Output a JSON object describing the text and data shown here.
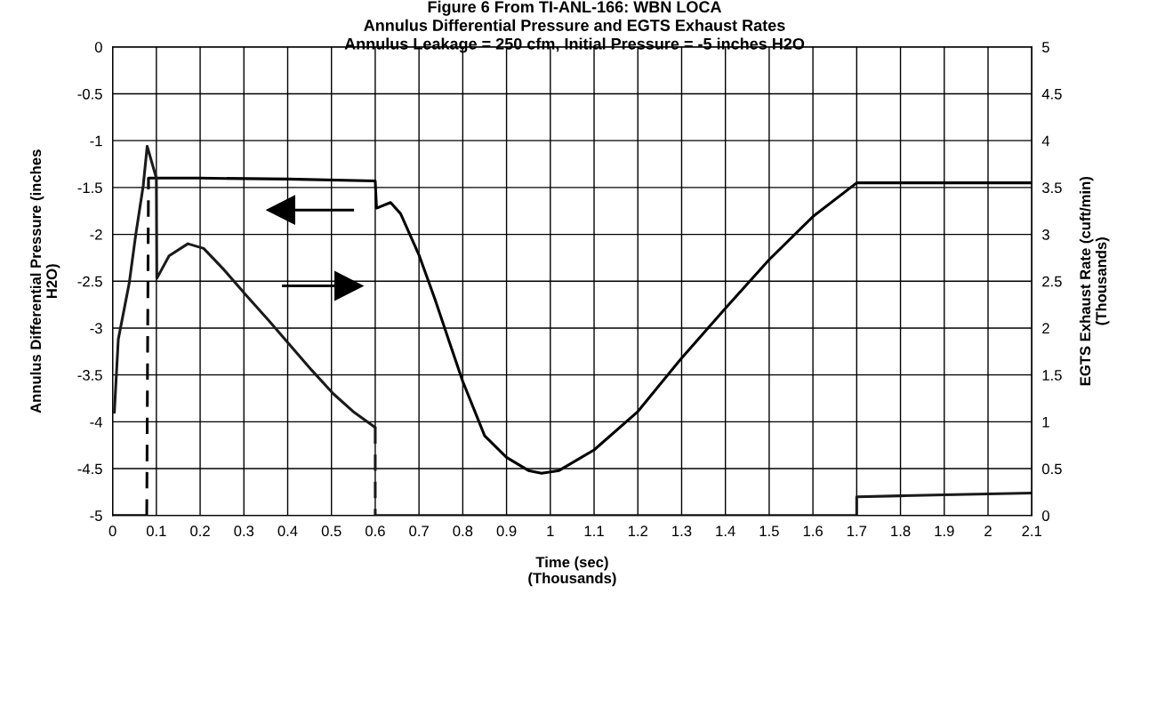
{
  "chart_data": {
    "type": "line",
    "title": "Figure 6 From TI-ANL-166: WBN LOCA\nAnnulus Differential Pressure and EGTS Exhaust Rates\nAnnulus Leakage = 250 cfm, Initial Pressure = -5 inches H2O",
    "xlabel": "Time (sec)\n(Thousands)",
    "ylabel": "Annulus Differential Pressure (inches\nH2O)",
    "y2label": "EGTS Exhaust Rate (cuft/min)\n(Thousands)",
    "series": [
      {
        "color": "#000000",
        "line_style": "solid",
        "x": [
          0,
          0.078
        ],
        "values": [
          -5,
          -5
        ]
      },
      {
        "color": "#000000",
        "line_style": "solid",
        "x": [
          0.082,
          0.2,
          0.4,
          0.6,
          0.603,
          0.635,
          0.658,
          0.7,
          0.737,
          0.773,
          0.8,
          0.85,
          0.9,
          0.95,
          0.98,
          1.02,
          1.1,
          1.2,
          1.3,
          1.4,
          1.5,
          1.6,
          1.7,
          2.1
        ],
        "values": [
          -1.4,
          -1.4,
          -1.41,
          -1.43,
          -1.72,
          -1.66,
          -1.78,
          -2.22,
          -2.7,
          -3.2,
          -3.57,
          -4.15,
          -4.38,
          -4.52,
          -4.55,
          -4.52,
          -4.3,
          -3.89,
          -3.32,
          -2.79,
          -2.27,
          -1.81,
          -1.45,
          -1.45
        ]
      },
      {
        "color": "#000000",
        "line_style": "dashed",
        "x": [
          0.078,
          0.082
        ],
        "values": [
          -5,
          -1.4
        ]
      },
      {
        "color": "#1a1a1a",
        "line_style": "solid",
        "axis": "y2",
        "x": [
          0.004,
          0.013,
          0.038,
          0.053,
          0.07,
          0.079,
          0.1,
          0.101,
          0.129,
          0.172,
          0.208,
          0.255,
          0.305,
          0.355,
          0.405,
          0.455,
          0.504,
          0.552,
          0.6
        ],
        "values": [
          1.1,
          1.88,
          2.48,
          3.0,
          3.52,
          3.94,
          3.6,
          2.53,
          2.77,
          2.9,
          2.85,
          2.62,
          2.35,
          2.09,
          1.82,
          1.55,
          1.3,
          1.1,
          0.94
        ]
      },
      {
        "color": "#1a1a1a",
        "line_style": "dashed",
        "axis": "y2",
        "x": [
          0.6,
          0.6
        ],
        "values": [
          0.94,
          0
        ]
      },
      {
        "color": "#1a1a1a",
        "line_style": "solid",
        "axis": "y2",
        "x": [
          0.6,
          1.7,
          1.7,
          1.8,
          1.9,
          2.0,
          2.1
        ],
        "values": [
          0,
          0,
          0.2,
          0.21,
          0.22,
          0.23,
          0.24
        ]
      }
    ],
    "xlim": [
      0,
      2.1
    ],
    "xticks": [
      0,
      0.1,
      0.2,
      0.3,
      0.4,
      0.5,
      0.6,
      0.7,
      0.8,
      0.9,
      1,
      1.1,
      1.2,
      1.3,
      1.4,
      1.5,
      1.6,
      1.7,
      1.8,
      1.9,
      2,
      2.1
    ],
    "ylim": [
      -5,
      0
    ],
    "yticks": [
      -5,
      -4.5,
      -4,
      -3.5,
      -3,
      -2.5,
      -2,
      -1.5,
      -1,
      -0.5,
      0
    ],
    "y2lim": [
      0,
      5
    ],
    "y2ticks": [
      0,
      0.5,
      1,
      1.5,
      2,
      2.5,
      3,
      3.5,
      4,
      4.5,
      5
    ],
    "grid": true,
    "marker": "none"
  }
}
